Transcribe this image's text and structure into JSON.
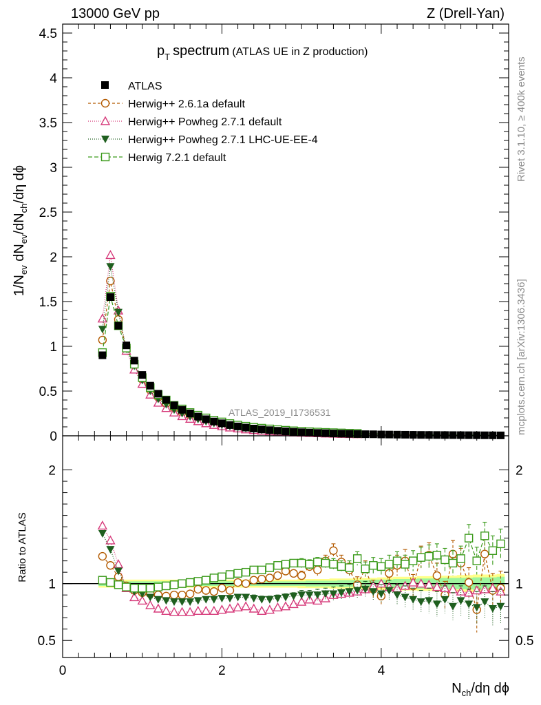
{
  "header": {
    "left": "13000 GeV pp",
    "right": "Z (Drell-Yan)"
  },
  "side_labels": {
    "rivet": "Rivet 3.1.10, ≥ 400k events",
    "mcplots": "mcplots.cern.ch [arXiv:1306.3436]"
  },
  "watermark": "ATLAS_2019_I1736531",
  "colors": {
    "atlas": "#000000",
    "herwig261": "#b35a00",
    "powheg_default": "#d63a7a",
    "powheg_ue": "#1f5f1f",
    "herwig721": "#3a9a1a",
    "band_inner": "#9ef59e",
    "band_outer": "#ffff88"
  },
  "chart_data": [
    {
      "type": "scatter",
      "panel": "main",
      "title_main": "p",
      "title_sub": "T",
      "title_word": "spectrum",
      "title_note": "(ATLAS UE in Z production)",
      "ylabel_parts": [
        "1/N",
        "ev",
        " dN",
        "ev",
        "/dN",
        "ch",
        "/dη dϕ"
      ],
      "xlim": [
        0,
        5.6
      ],
      "ylim": [
        0,
        4.6
      ],
      "yticks": [
        "0",
        "0.5",
        "1",
        "1.5",
        "2",
        "2.5",
        "3",
        "3.5",
        "4",
        "4.5"
      ],
      "x": [
        0.5,
        0.6,
        0.7,
        0.8,
        0.9,
        1.0,
        1.1,
        1.2,
        1.3,
        1.4,
        1.5,
        1.6,
        1.7,
        1.8,
        1.9,
        2.0,
        2.1,
        2.2,
        2.3,
        2.4,
        2.5,
        2.6,
        2.7,
        2.8,
        2.9,
        3.0,
        3.1,
        3.2,
        3.3,
        3.4,
        3.5,
        3.6,
        3.7,
        3.8,
        3.9,
        4.0,
        4.1,
        4.2,
        4.3,
        4.4,
        4.5,
        4.6,
        4.7,
        4.8,
        4.9,
        5.0,
        5.1,
        5.2,
        5.3,
        5.4,
        5.5
      ],
      "series": [
        {
          "name": "ATLAS",
          "marker": "square-filled",
          "values": [
            0.9,
            1.55,
            1.23,
            1.01,
            0.84,
            0.68,
            0.56,
            0.47,
            0.4,
            0.34,
            0.29,
            0.25,
            0.215,
            0.185,
            0.16,
            0.14,
            0.12,
            0.105,
            0.092,
            0.081,
            0.071,
            0.063,
            0.056,
            0.05,
            0.045,
            0.04,
            0.036,
            0.032,
            0.029,
            0.026,
            0.024,
            0.022,
            0.02,
            0.018,
            0.017,
            0.015,
            0.014,
            0.013,
            0.012,
            0.011,
            0.01,
            0.0095,
            0.009,
            0.0085,
            0.008,
            0.0075,
            0.007,
            0.0065,
            0.006,
            0.0055,
            0.005
          ]
        },
        {
          "name": "Herwig++ 2.6.1a default",
          "marker": "circle-open",
          "dash": "4,3",
          "values": [
            1.07,
            1.73,
            1.3,
            0.99,
            0.79,
            0.63,
            0.51,
            0.43,
            0.36,
            0.31,
            0.26,
            0.23,
            0.205,
            0.175,
            0.15,
            0.13,
            0.115,
            0.1,
            0.092,
            0.081,
            0.071,
            0.064,
            0.058,
            0.052,
            0.047,
            0.042,
            0.038,
            0.034,
            0.031,
            0.028,
            0.026,
            0.024,
            0.022,
            0.02,
            0.018,
            0.016,
            0.015,
            0.014,
            0.013,
            0.012,
            0.011,
            0.01,
            0.009,
            0.0085,
            0.008,
            0.0075,
            0.007,
            0.0065,
            0.006,
            0.0055,
            0.005
          ]
        },
        {
          "name": "Herwig++ Powheg 2.7.1 default",
          "marker": "triangle-open",
          "dash": "1,2",
          "values": [
            1.31,
            2.02,
            1.4,
            0.95,
            0.74,
            0.58,
            0.46,
            0.37,
            0.31,
            0.26,
            0.22,
            0.19,
            0.163,
            0.14,
            0.122,
            0.106,
            0.093,
            0.082,
            0.072,
            0.064,
            0.056,
            0.05,
            0.045,
            0.041,
            0.037,
            0.034,
            0.031,
            0.028,
            0.026,
            0.024,
            0.022,
            0.02,
            0.018,
            0.017,
            0.016,
            0.015,
            0.014,
            0.013,
            0.012,
            0.011,
            0.01,
            0.009,
            0.0085,
            0.008,
            0.0075,
            0.007,
            0.0065,
            0.006,
            0.0055,
            0.005,
            0.0045
          ]
        },
        {
          "name": "Herwig++ Powheg 2.7.1 LHC-UE-EE-4",
          "marker": "triangle-down-filled",
          "dash": "1,2",
          "values": [
            1.19,
            1.89,
            1.38,
            0.97,
            0.78,
            0.62,
            0.5,
            0.41,
            0.35,
            0.29,
            0.25,
            0.215,
            0.185,
            0.16,
            0.14,
            0.122,
            0.106,
            0.094,
            0.083,
            0.073,
            0.064,
            0.057,
            0.051,
            0.046,
            0.041,
            0.037,
            0.034,
            0.031,
            0.028,
            0.026,
            0.023,
            0.021,
            0.019,
            0.018,
            0.016,
            0.015,
            0.014,
            0.013,
            0.012,
            0.011,
            0.01,
            0.009,
            0.0085,
            0.008,
            0.0075,
            0.007,
            0.0065,
            0.006,
            0.0055,
            0.005,
            0.0045
          ]
        },
        {
          "name": "Herwig 7.2.1 default",
          "marker": "square-open",
          "dash": "6,3",
          "values": [
            0.93,
            1.56,
            1.23,
            0.98,
            0.8,
            0.65,
            0.54,
            0.46,
            0.4,
            0.34,
            0.3,
            0.26,
            0.23,
            0.2,
            0.175,
            0.155,
            0.137,
            0.12,
            0.107,
            0.095,
            0.085,
            0.077,
            0.069,
            0.062,
            0.056,
            0.051,
            0.046,
            0.042,
            0.038,
            0.035,
            0.032,
            0.029,
            0.027,
            0.025,
            0.023,
            0.021,
            0.019,
            0.018,
            0.016,
            0.015,
            0.014,
            0.013,
            0.012,
            0.011,
            0.01,
            0.0095,
            0.009,
            0.0085,
            0.008,
            0.0075,
            0.007
          ]
        }
      ]
    },
    {
      "type": "scatter",
      "panel": "ratio",
      "ylabel": "Ratio to ATLAS",
      "xlabel_parts": [
        "N",
        "ch",
        "/dη dϕ"
      ],
      "xlim": [
        0,
        5.6
      ],
      "ylim": [
        0.35,
        2.3
      ],
      "yticks": [
        "0.5",
        "1",
        "2"
      ],
      "xticks": [
        "0",
        "2",
        "4"
      ],
      "x": [
        0.5,
        0.6,
        0.7,
        0.8,
        0.9,
        1.0,
        1.1,
        1.2,
        1.3,
        1.4,
        1.5,
        1.6,
        1.7,
        1.8,
        1.9,
        2.0,
        2.1,
        2.2,
        2.3,
        2.4,
        2.5,
        2.6,
        2.7,
        2.8,
        2.9,
        3.0,
        3.1,
        3.2,
        3.3,
        3.4,
        3.5,
        3.6,
        3.7,
        3.8,
        3.9,
        4.0,
        4.1,
        4.2,
        4.3,
        4.4,
        4.5,
        4.6,
        4.7,
        4.8,
        4.9,
        5.0,
        5.1,
        5.2,
        5.3,
        5.4,
        5.5
      ],
      "band": {
        "inner": [
          0.02,
          0.02,
          0.02,
          0.02,
          0.02,
          0.02,
          0.02,
          0.02,
          0.02,
          0.02,
          0.02,
          0.02,
          0.02,
          0.02,
          0.02,
          0.02,
          0.02,
          0.02,
          0.02,
          0.02,
          0.02,
          0.02,
          0.02,
          0.02,
          0.02,
          0.02,
          0.025,
          0.025,
          0.025,
          0.025,
          0.03,
          0.03,
          0.03,
          0.03,
          0.035,
          0.035,
          0.035,
          0.04,
          0.04,
          0.04,
          0.045,
          0.045,
          0.045,
          0.05,
          0.05,
          0.05,
          0.05,
          0.055,
          0.055,
          0.055,
          0.06
        ],
        "outer": [
          0.035,
          0.035,
          0.035,
          0.035,
          0.035,
          0.035,
          0.035,
          0.035,
          0.035,
          0.035,
          0.035,
          0.035,
          0.035,
          0.035,
          0.035,
          0.035,
          0.035,
          0.035,
          0.035,
          0.035,
          0.035,
          0.035,
          0.035,
          0.035,
          0.035,
          0.04,
          0.04,
          0.04,
          0.04,
          0.045,
          0.045,
          0.045,
          0.05,
          0.05,
          0.05,
          0.055,
          0.055,
          0.06,
          0.06,
          0.06,
          0.065,
          0.065,
          0.07,
          0.07,
          0.07,
          0.075,
          0.075,
          0.08,
          0.08,
          0.08,
          0.085
        ]
      },
      "series": [
        {
          "name": "Herwig++ 2.6.1a default",
          "values": [
            1.24,
            1.16,
            1.06,
            0.98,
            0.94,
            0.92,
            0.91,
            0.9,
            0.89,
            0.9,
            0.9,
            0.91,
            0.95,
            0.94,
            0.93,
            0.96,
            0.94,
            1.01,
            1.0,
            1.03,
            1.04,
            1.05,
            1.07,
            1.11,
            1.09,
            1.07,
            1.15,
            1.12,
            1.2,
            1.29,
            1.19,
            1.12,
            0.99,
            1.13,
            0.95,
            0.89,
            1.09,
            1.16,
            1.2,
            0.98,
            1.23,
            1.25,
            1.07,
            0.9,
            1.26,
            1.18,
            1.01,
            0.77,
            1.26,
            0.94,
            0.96
          ],
          "errors": [
            0.02,
            0.02,
            0.02,
            0.02,
            0.02,
            0.02,
            0.02,
            0.02,
            0.02,
            0.02,
            0.02,
            0.02,
            0.02,
            0.02,
            0.02,
            0.02,
            0.02,
            0.02,
            0.02,
            0.03,
            0.03,
            0.03,
            0.03,
            0.03,
            0.03,
            0.04,
            0.04,
            0.05,
            0.05,
            0.06,
            0.06,
            0.06,
            0.07,
            0.07,
            0.08,
            0.08,
            0.09,
            0.09,
            0.1,
            0.1,
            0.1,
            0.11,
            0.11,
            0.12,
            0.12,
            0.13,
            0.13,
            0.2,
            0.14,
            0.15,
            0.15
          ]
        },
        {
          "name": "Herwig++ Powheg 2.7.1 default",
          "values": [
            1.51,
            1.38,
            1.17,
            0.96,
            0.88,
            0.85,
            0.81,
            0.78,
            0.76,
            0.75,
            0.75,
            0.75,
            0.76,
            0.76,
            0.76,
            0.77,
            0.78,
            0.79,
            0.8,
            0.78,
            0.76,
            0.77,
            0.79,
            0.8,
            0.82,
            0.84,
            0.86,
            0.85,
            0.87,
            0.9,
            0.91,
            0.92,
            0.93,
            0.95,
            0.98,
            1.0,
            0.97,
            0.96,
            0.98,
            1.01,
            1.0,
            0.99,
            0.97,
            0.96,
            0.95,
            0.93,
            0.92,
            0.94,
            0.95,
            0.96,
            0.93
          ]
        },
        {
          "name": "Herwig++ Powheg 2.7.1 LHC-UE-EE-4",
          "values": [
            1.44,
            1.3,
            1.11,
            0.97,
            0.93,
            0.91,
            0.88,
            0.86,
            0.85,
            0.84,
            0.84,
            0.84,
            0.85,
            0.86,
            0.86,
            0.87,
            0.87,
            0.88,
            0.88,
            0.87,
            0.86,
            0.86,
            0.87,
            0.88,
            0.89,
            0.9,
            0.9,
            0.9,
            0.91,
            0.91,
            0.92,
            0.93,
            0.94,
            0.95,
            0.93,
            0.91,
            0.94,
            0.9,
            0.88,
            0.86,
            0.84,
            0.85,
            0.82,
            0.86,
            0.8,
            0.85,
            0.82,
            0.79,
            0.84,
            0.78,
            0.8
          ],
          "errors": [
            0.02,
            0.02,
            0.02,
            0.02,
            0.02,
            0.02,
            0.02,
            0.02,
            0.02,
            0.02,
            0.02,
            0.02,
            0.02,
            0.02,
            0.02,
            0.02,
            0.02,
            0.02,
            0.02,
            0.03,
            0.03,
            0.03,
            0.03,
            0.03,
            0.03,
            0.04,
            0.04,
            0.05,
            0.05,
            0.06,
            0.06,
            0.06,
            0.07,
            0.07,
            0.08,
            0.08,
            0.09,
            0.09,
            0.1,
            0.1,
            0.1,
            0.11,
            0.11,
            0.12,
            0.12,
            0.13,
            0.13,
            0.14,
            0.14,
            0.15,
            0.15
          ]
        },
        {
          "name": "Herwig 7.2.1 default",
          "values": [
            1.03,
            1.01,
            0.99,
            0.97,
            0.96,
            0.96,
            0.96,
            0.97,
            0.98,
            0.99,
            1.0,
            1.01,
            1.02,
            1.03,
            1.05,
            1.06,
            1.08,
            1.09,
            1.1,
            1.12,
            1.12,
            1.14,
            1.16,
            1.17,
            1.18,
            1.18,
            1.17,
            1.19,
            1.18,
            1.17,
            1.15,
            1.14,
            1.22,
            1.13,
            1.16,
            1.15,
            1.17,
            1.2,
            1.17,
            1.2,
            1.23,
            1.24,
            1.25,
            1.21,
            1.18,
            1.22,
            1.4,
            1.2,
            1.42,
            1.29,
            1.35
          ],
          "errors": [
            0.02,
            0.02,
            0.02,
            0.02,
            0.02,
            0.02,
            0.02,
            0.02,
            0.02,
            0.02,
            0.02,
            0.02,
            0.02,
            0.02,
            0.02,
            0.02,
            0.02,
            0.02,
            0.02,
            0.03,
            0.03,
            0.03,
            0.03,
            0.03,
            0.03,
            0.04,
            0.04,
            0.04,
            0.05,
            0.05,
            0.05,
            0.06,
            0.06,
            0.06,
            0.07,
            0.07,
            0.08,
            0.08,
            0.08,
            0.09,
            0.09,
            0.1,
            0.1,
            0.1,
            0.11,
            0.11,
            0.12,
            0.12,
            0.12,
            0.13,
            0.13
          ]
        }
      ]
    }
  ]
}
